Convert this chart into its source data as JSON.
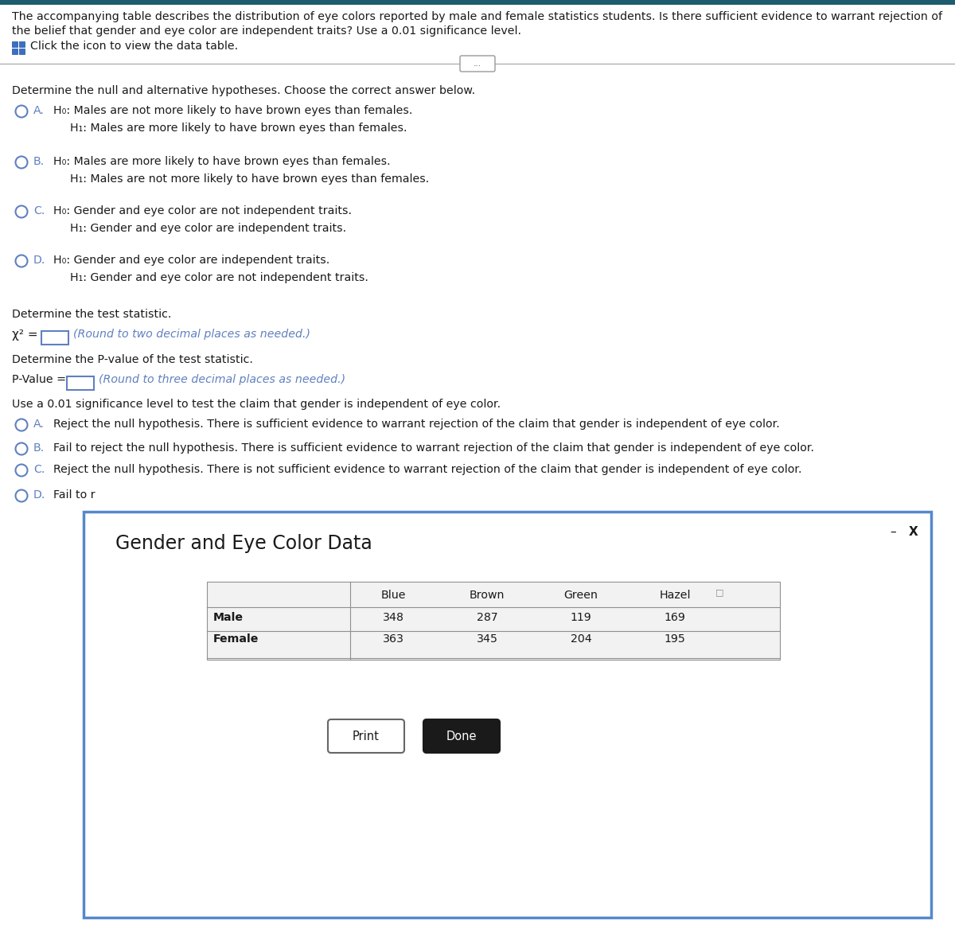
{
  "title_line1": "The accompanying table describes the distribution of eye colors reported by male and female statistics students. Is there sufficient evidence to warrant rejection of",
  "title_line2": "the belief that gender and eye color are independent traits? Use a 0.01 significance level.",
  "click_text": "Click the icon to view the data table.",
  "section1_header": "Determine the null and alternative hypotheses. Choose the correct answer below.",
  "options_hyp": [
    {
      "letter": "A.",
      "h0": "H₀: Males are not more likely to have brown eyes than females.",
      "h1": "H₁: Males are more likely to have brown eyes than females."
    },
    {
      "letter": "B.",
      "h0": "H₀: Males are more likely to have brown eyes than females.",
      "h1": "H₁: Males are not more likely to have brown eyes than females."
    },
    {
      "letter": "C.",
      "h0": "H₀: Gender and eye color are not independent traits.",
      "h1": "H₁: Gender and eye color are independent traits."
    },
    {
      "letter": "D.",
      "h0": "H₀: Gender and eye color are independent traits.",
      "h1": "H₁: Gender and eye color are not independent traits."
    }
  ],
  "section2_header": "Determine the test statistic.",
  "chi_sq_label": "χ² =",
  "chi_sq_hint": "(Round to two decimal places as needed.)",
  "section3_header": "Determine the P-value of the test statistic.",
  "pval_label": "P-Value =",
  "pval_hint": "(Round to three decimal places as needed.)",
  "section4_header": "Use a 0.01 significance level to test the claim that gender is independent of eye color.",
  "options_conclusion": [
    {
      "letter": "A.",
      "text": "Reject the null hypothesis. There is sufficient evidence to warrant rejection of the claim that gender is independent of eye color."
    },
    {
      "letter": "B.",
      "text": "Fail to reject the null hypothesis. There is sufficient evidence to warrant rejection of the claim that gender is independent of eye color."
    },
    {
      "letter": "C.",
      "text": "Reject the null hypothesis. There is not sufficient evidence to warrant rejection of the claim that gender is independent of eye color."
    },
    {
      "letter": "D.",
      "text": "Fail to r"
    }
  ],
  "dialog_title": "Gender and Eye Color Data",
  "col_headers": [
    "Blue",
    "Brown",
    "Green",
    "Hazel"
  ],
  "row_headers": [
    "Male",
    "Female"
  ],
  "table_data": [
    [
      348,
      287,
      119,
      169
    ],
    [
      363,
      345,
      204,
      195
    ]
  ],
  "print_btn": "Print",
  "done_btn": "Done",
  "bg_color": "#ffffff",
  "text_color": "#1a1a1a",
  "option_color": "#6080c0",
  "hint_color": "#6080c0",
  "dialog_border_color": "#5588cc",
  "top_bar_color": "#1e5c6e",
  "separator_color": "#b0b0b0"
}
